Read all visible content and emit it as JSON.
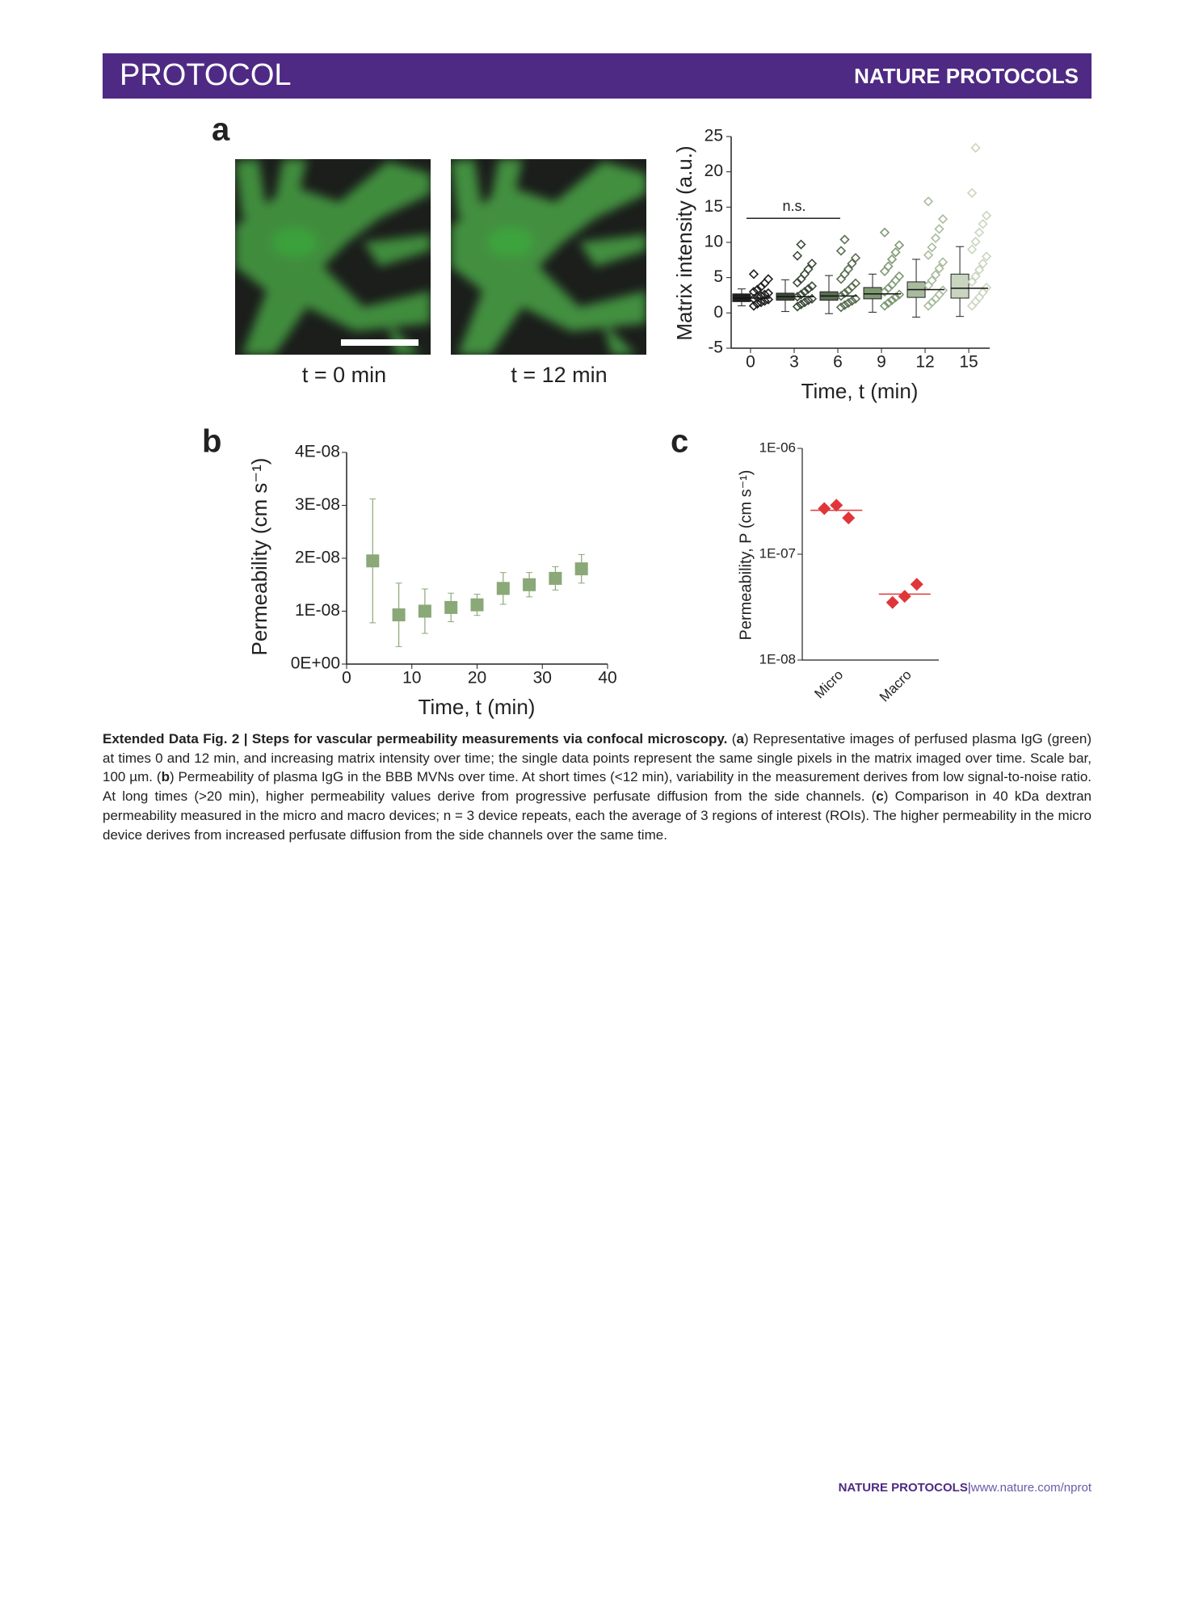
{
  "header": {
    "section": "PROTOCOL",
    "journal": "NATURE PROTOCOLS"
  },
  "chart_data": [
    {
      "type": "box",
      "panel": "a",
      "image_labels": [
        "t = 0 min",
        "t = 12 min"
      ],
      "ylabel": "Matrix intensity (a.u.)",
      "xlabel": "Time, t (min)",
      "x": [
        0,
        3,
        6,
        9,
        12,
        15
      ],
      "xlim": [
        -1.33,
        16.44
      ],
      "xticks": [
        0,
        3,
        6,
        9,
        12,
        15
      ],
      "ylim": [
        -5,
        25
      ],
      "yticks": [
        -5,
        0,
        5,
        10,
        15,
        20,
        25
      ],
      "colors": [
        "#1e1e1e",
        "#3d4a39",
        "#5a6e52",
        "#7f9873",
        "#a9bb9d",
        "#c9d5bf"
      ],
      "boxes": [
        {
          "whislo": 1.0,
          "q1": 1.6,
          "med": 2.1,
          "q3": 2.7,
          "whishi": 3.4
        },
        {
          "whislo": 0.2,
          "q1": 1.8,
          "med": 2.3,
          "q3": 2.8,
          "whishi": 4.7
        },
        {
          "whislo": -0.1,
          "q1": 1.8,
          "med": 2.4,
          "q3": 3.0,
          "whishi": 5.3
        },
        {
          "whislo": 0.1,
          "q1": 2.0,
          "med": 2.7,
          "q3": 3.6,
          "whishi": 5.5
        },
        {
          "whislo": -0.6,
          "q1": 2.2,
          "med": 3.3,
          "q3": 4.4,
          "whishi": 7.6
        },
        {
          "whislo": -0.5,
          "q1": 2.1,
          "med": 3.5,
          "q3": 5.5,
          "whishi": 9.4
        }
      ],
      "points": [
        [
          1.0,
          1.3,
          1.5,
          1.7,
          1.9,
          2.0,
          2.2,
          2.4,
          2.6,
          2.8,
          3.0,
          3.3,
          3.7,
          4.2,
          4.8,
          5.5
        ],
        [
          0.9,
          1.2,
          1.5,
          1.8,
          2.0,
          2.3,
          2.6,
          3.0,
          3.4,
          3.8,
          4.3,
          4.8,
          5.5,
          6.2,
          7.0,
          8.1,
          9.7
        ],
        [
          0.8,
          1.1,
          1.4,
          1.7,
          2.0,
          2.4,
          2.8,
          3.2,
          3.7,
          4.2,
          4.8,
          5.5,
          6.2,
          7.0,
          7.8,
          8.8,
          10.4
        ],
        [
          1.0,
          1.4,
          1.8,
          2.2,
          2.6,
          3.0,
          3.5,
          4.0,
          4.6,
          5.2,
          5.9,
          6.6,
          7.6,
          8.6,
          9.6,
          11.4
        ],
        [
          1.0,
          1.5,
          2.0,
          2.6,
          3.2,
          3.9,
          4.6,
          5.4,
          6.3,
          7.2,
          8.2,
          9.3,
          10.6,
          11.9,
          13.3,
          15.8
        ],
        [
          1.0,
          1.6,
          2.2,
          2.9,
          3.6,
          4.4,
          5.2,
          6.1,
          7.0,
          8.0,
          9.0,
          10.1,
          11.4,
          12.6,
          13.8,
          17.0,
          23.4
        ]
      ],
      "annotation": {
        "text": "n.s.",
        "x": [
          0,
          6
        ],
        "y": 13.4
      }
    },
    {
      "type": "errorbar",
      "panel": "b",
      "ylabel": "Permeability (cm s⁻¹)",
      "xlabel": "Time, t (min)",
      "x": [
        4,
        8,
        12,
        16,
        20,
        24,
        28,
        32,
        36
      ],
      "values": [
        1.95e-08,
        9.3e-09,
        1e-08,
        1.07e-08,
        1.12e-08,
        1.43e-08,
        1.5e-08,
        1.62e-08,
        1.8e-08
      ],
      "errors": [
        1.17e-08,
        6e-09,
        4.2e-09,
        2.7e-09,
        2e-09,
        3e-09,
        2.3e-09,
        2.2e-09,
        2.7e-09
      ],
      "color": "#8aa878",
      "xlim": [
        0,
        40
      ],
      "xticks": [
        0,
        10,
        20,
        30,
        40
      ],
      "ylim": [
        0,
        4e-08
      ],
      "yticks": [
        {
          "value": 0,
          "label": "0E+00"
        },
        {
          "value": 1e-08,
          "label": "1E-08"
        },
        {
          "value": 2e-08,
          "label": "2E-08"
        },
        {
          "value": 3e-08,
          "label": "3E-08"
        },
        {
          "value": 4e-08,
          "label": "4E-08"
        }
      ]
    },
    {
      "type": "strip",
      "panel": "c",
      "ylabel": "Permeability, P (cm s⁻¹)",
      "log": true,
      "categories": [
        "Micro",
        "Macro"
      ],
      "values": [
        [
          2.7e-07,
          2.9e-07,
          2.2e-07
        ],
        [
          3.5e-08,
          4e-08,
          5.2e-08
        ]
      ],
      "means": [
        2.6e-07,
        4.2e-08
      ],
      "color": "#e0363a",
      "ylim": [
        1e-08,
        1e-06
      ],
      "yticks": [
        {
          "value": 1e-08,
          "label": "1E-08"
        },
        {
          "value": 1e-07,
          "label": "1E-07"
        },
        {
          "value": 1e-06,
          "label": "1E-06"
        }
      ]
    }
  ],
  "caption": {
    "title": "Extended Data Fig. 2 | Steps for vascular permeability measurements via confocal microscopy.",
    "body": [
      " (",
      "a",
      ") Representative images of perfused plasma IgG (green) at times 0 and 12 min, and increasing matrix intensity over time; the single data points represent the same single pixels in the matrix imaged over time. Scale bar, 100 µm. (",
      "b",
      ") Permeability of plasma IgG in the BBB MVNs over time. At short times (<12 min), variability in the measurement derives from low signal-to-noise ratio. At long times (>20 min), higher permeability values derive from progressive perfusate diffusion from the side channels. (",
      "c",
      ") Comparison in 40 kDa dextran permeability measured in the micro and macro devices; n = 3 device repeats, each the average of 3 regions of interest (ROIs). The higher permeability in the micro device derives from increased perfusate diffusion from the side channels over the same time."
    ]
  },
  "footer": {
    "journal": "NATURE PROTOCOLS",
    "separator": "|",
    "url": "www.nature.com/nprot"
  }
}
